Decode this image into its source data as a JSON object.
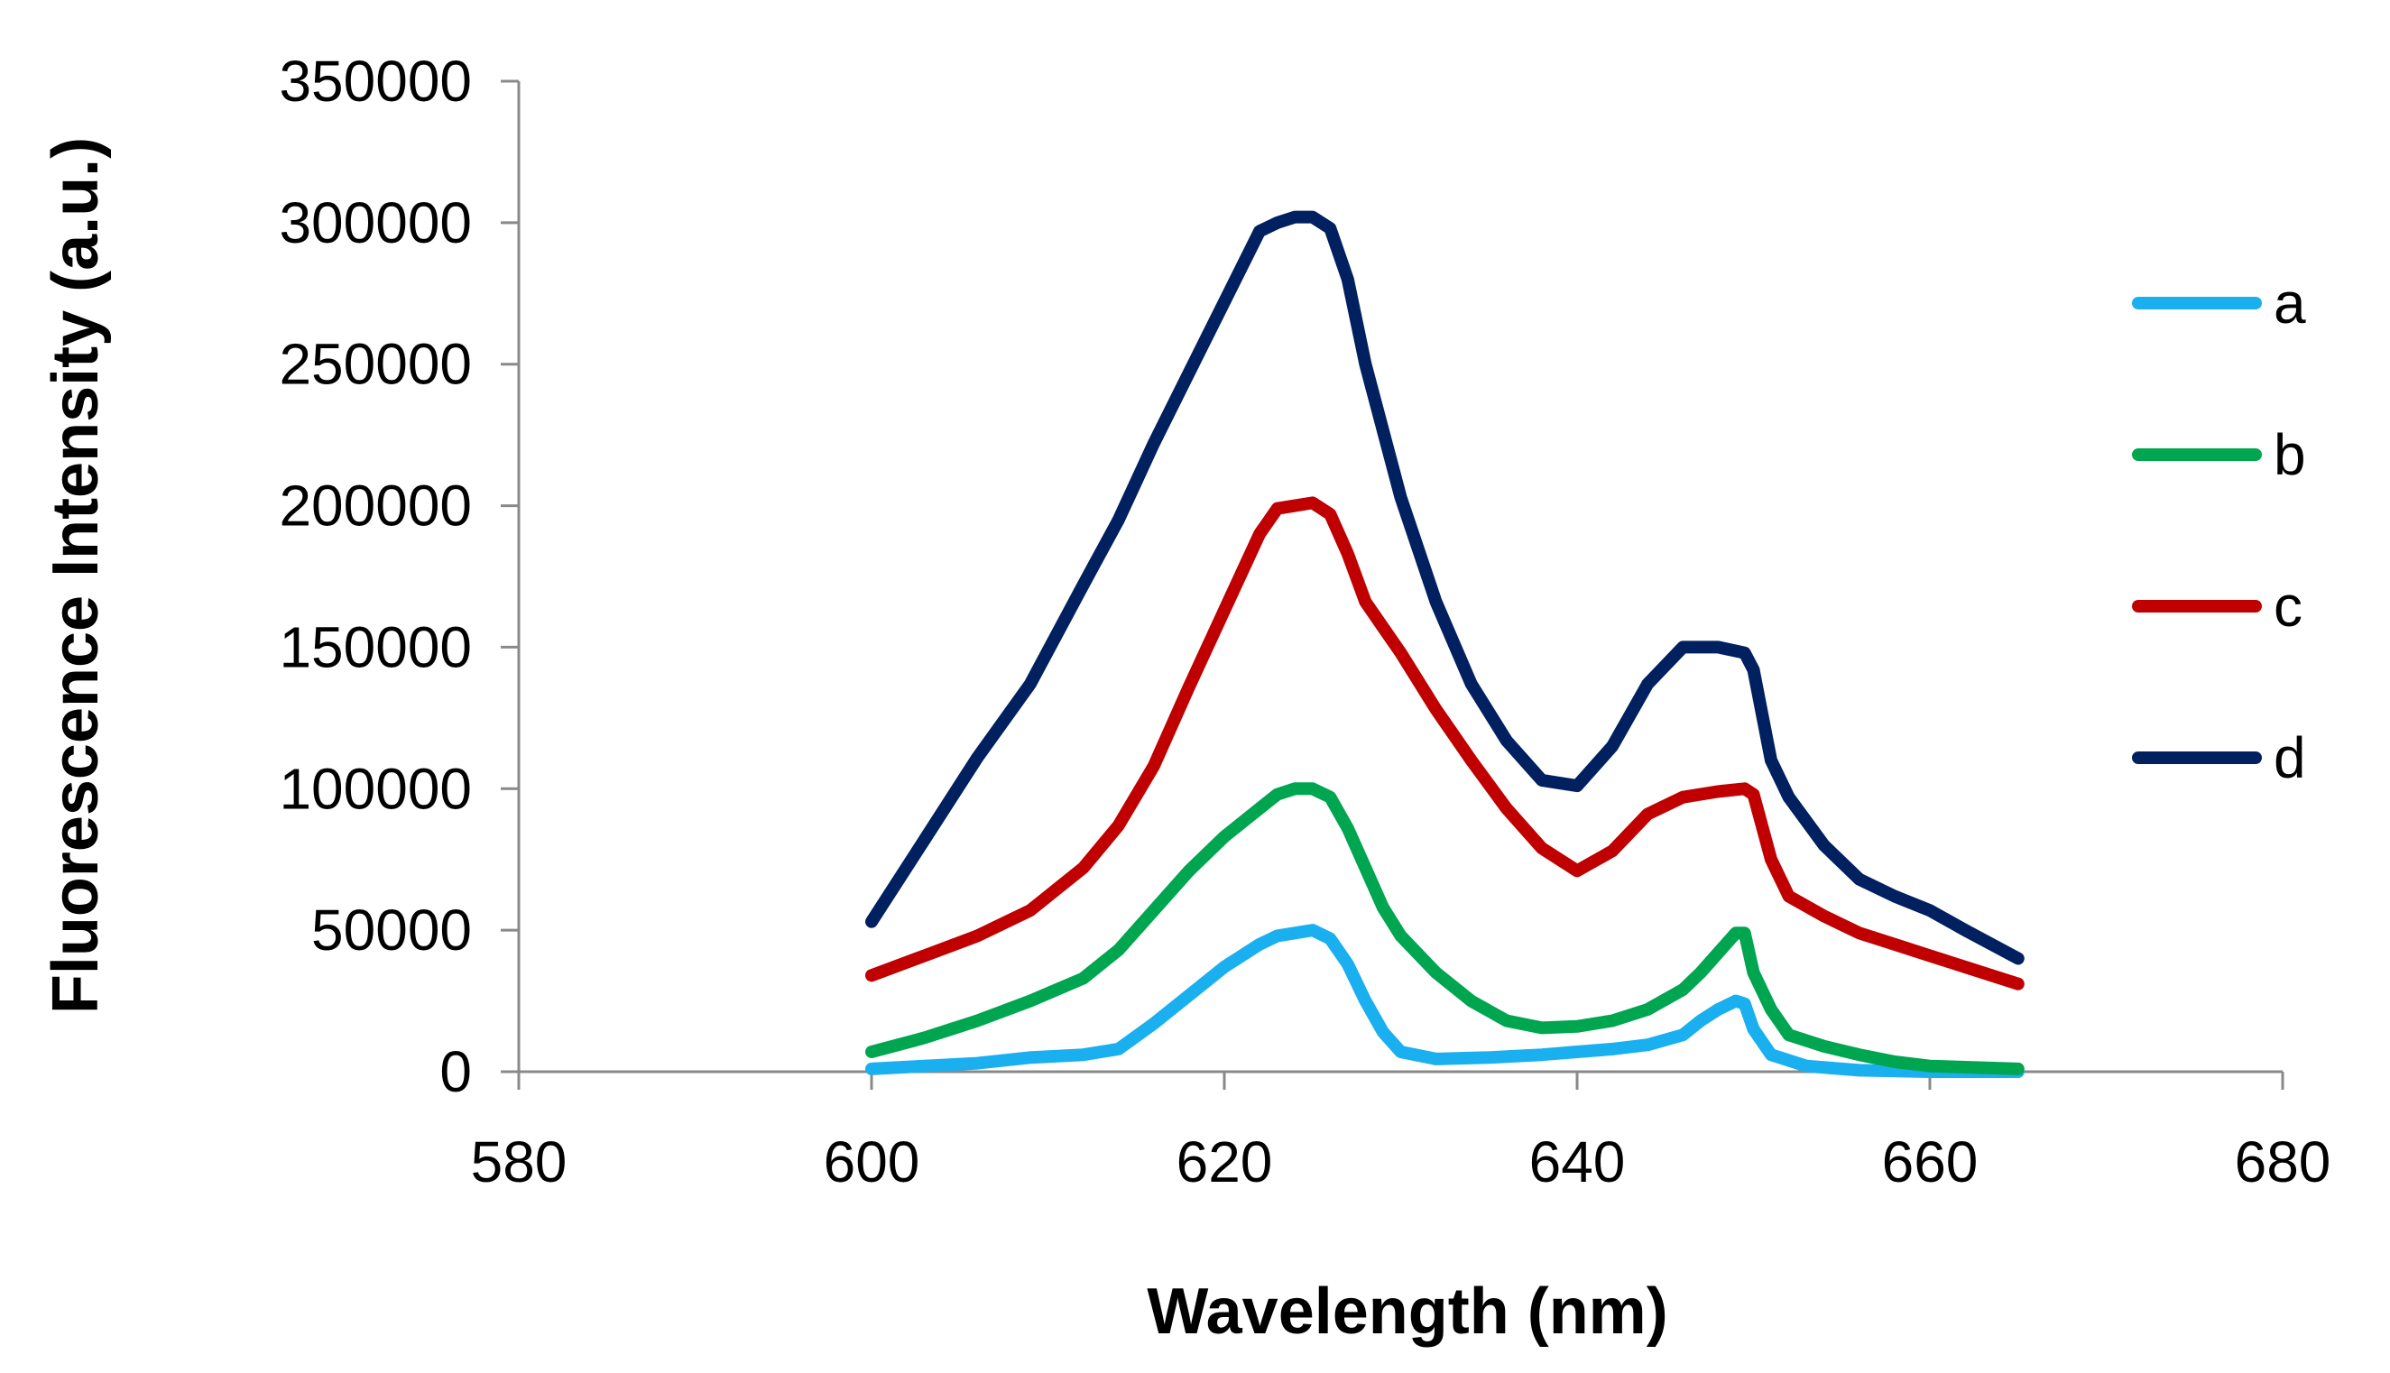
{
  "chart_data": {
    "type": "line",
    "title": "",
    "xlabel": "Wavelength (nm)",
    "ylabel": "Fluorescence Intensity (a.u.)",
    "xlim": [
      580,
      680
    ],
    "ylim": [
      0,
      350000
    ],
    "xticks": [
      580,
      600,
      620,
      640,
      660,
      680
    ],
    "yticks": [
      0,
      50000,
      100000,
      150000,
      200000,
      250000,
      300000,
      350000
    ],
    "grid": false,
    "legend_position": "right",
    "series": [
      {
        "name": "a",
        "color": "#1AAFEF",
        "points": [
          [
            600,
            1000
          ],
          [
            603,
            2000
          ],
          [
            606,
            3000
          ],
          [
            609,
            5000
          ],
          [
            612,
            6000
          ],
          [
            614,
            8000
          ],
          [
            616,
            17000
          ],
          [
            618,
            27000
          ],
          [
            620,
            37000
          ],
          [
            622,
            45000
          ],
          [
            623,
            48000
          ],
          [
            624,
            49000
          ],
          [
            625,
            50000
          ],
          [
            626,
            47000
          ],
          [
            627,
            38000
          ],
          [
            628,
            25000
          ],
          [
            629,
            14000
          ],
          [
            630,
            7000
          ],
          [
            632,
            4500
          ],
          [
            635,
            5000
          ],
          [
            638,
            6000
          ],
          [
            640,
            7000
          ],
          [
            642,
            8000
          ],
          [
            644,
            9500
          ],
          [
            646,
            13000
          ],
          [
            647,
            18000
          ],
          [
            648,
            22000
          ],
          [
            649,
            25000
          ],
          [
            649.5,
            24000
          ],
          [
            650,
            15000
          ],
          [
            651,
            6000
          ],
          [
            653,
            2000
          ],
          [
            656,
            500
          ],
          [
            660,
            0
          ],
          [
            665,
            0
          ]
        ]
      },
      {
        "name": "b",
        "color": "#00A550",
        "points": [
          [
            600,
            7000
          ],
          [
            603,
            12000
          ],
          [
            606,
            18000
          ],
          [
            609,
            25000
          ],
          [
            612,
            33000
          ],
          [
            614,
            43000
          ],
          [
            616,
            57000
          ],
          [
            618,
            71000
          ],
          [
            620,
            83000
          ],
          [
            622,
            93000
          ],
          [
            623,
            98000
          ],
          [
            624,
            100000
          ],
          [
            625,
            100000
          ],
          [
            626,
            97000
          ],
          [
            627,
            86000
          ],
          [
            628,
            72000
          ],
          [
            629,
            58000
          ],
          [
            630,
            48000
          ],
          [
            632,
            35000
          ],
          [
            634,
            25000
          ],
          [
            636,
            18000
          ],
          [
            638,
            15500
          ],
          [
            640,
            16000
          ],
          [
            642,
            18000
          ],
          [
            644,
            22000
          ],
          [
            646,
            29000
          ],
          [
            647,
            35000
          ],
          [
            648,
            42000
          ],
          [
            649,
            49000
          ],
          [
            649.5,
            49000
          ],
          [
            650,
            35000
          ],
          [
            651,
            22000
          ],
          [
            652,
            13000
          ],
          [
            654,
            9000
          ],
          [
            656,
            6000
          ],
          [
            658,
            3500
          ],
          [
            660,
            2000
          ],
          [
            665,
            1000
          ]
        ]
      },
      {
        "name": "c",
        "color": "#C00000",
        "points": [
          [
            600,
            34000
          ],
          [
            603,
            41000
          ],
          [
            606,
            48000
          ],
          [
            609,
            57000
          ],
          [
            612,
            72000
          ],
          [
            614,
            87000
          ],
          [
            616,
            108000
          ],
          [
            618,
            136000
          ],
          [
            620,
            163000
          ],
          [
            622,
            190000
          ],
          [
            623,
            199000
          ],
          [
            624,
            200000
          ],
          [
            625,
            201000
          ],
          [
            626,
            197000
          ],
          [
            627,
            183000
          ],
          [
            628,
            166000
          ],
          [
            630,
            148000
          ],
          [
            632,
            128000
          ],
          [
            634,
            110000
          ],
          [
            636,
            93000
          ],
          [
            638,
            79000
          ],
          [
            640,
            71000
          ],
          [
            642,
            78000
          ],
          [
            644,
            91000
          ],
          [
            646,
            97000
          ],
          [
            648,
            99000
          ],
          [
            649.5,
            100000
          ],
          [
            650,
            98000
          ],
          [
            651,
            75000
          ],
          [
            652,
            62000
          ],
          [
            654,
            55000
          ],
          [
            656,
            49000
          ],
          [
            658,
            45000
          ],
          [
            660,
            41000
          ],
          [
            662,
            37000
          ],
          [
            665,
            31000
          ]
        ]
      },
      {
        "name": "d",
        "color": "#002060",
        "points": [
          [
            600,
            53000
          ],
          [
            603,
            82000
          ],
          [
            606,
            111000
          ],
          [
            609,
            137000
          ],
          [
            612,
            172000
          ],
          [
            614,
            195000
          ],
          [
            616,
            222000
          ],
          [
            618,
            247000
          ],
          [
            620,
            272000
          ],
          [
            622,
            297000
          ],
          [
            623,
            300000
          ],
          [
            624,
            302000
          ],
          [
            625,
            302000
          ],
          [
            626,
            298000
          ],
          [
            627,
            280000
          ],
          [
            628,
            250000
          ],
          [
            630,
            203000
          ],
          [
            632,
            166000
          ],
          [
            634,
            137000
          ],
          [
            636,
            117000
          ],
          [
            638,
            103000
          ],
          [
            640,
            101000
          ],
          [
            642,
            115000
          ],
          [
            644,
            137000
          ],
          [
            646,
            150000
          ],
          [
            648,
            150000
          ],
          [
            649.5,
            148000
          ],
          [
            650,
            142000
          ],
          [
            651,
            110000
          ],
          [
            652,
            97000
          ],
          [
            654,
            80000
          ],
          [
            656,
            68000
          ],
          [
            658,
            62000
          ],
          [
            660,
            57000
          ],
          [
            662,
            50000
          ],
          [
            665,
            40000
          ]
        ]
      }
    ]
  }
}
